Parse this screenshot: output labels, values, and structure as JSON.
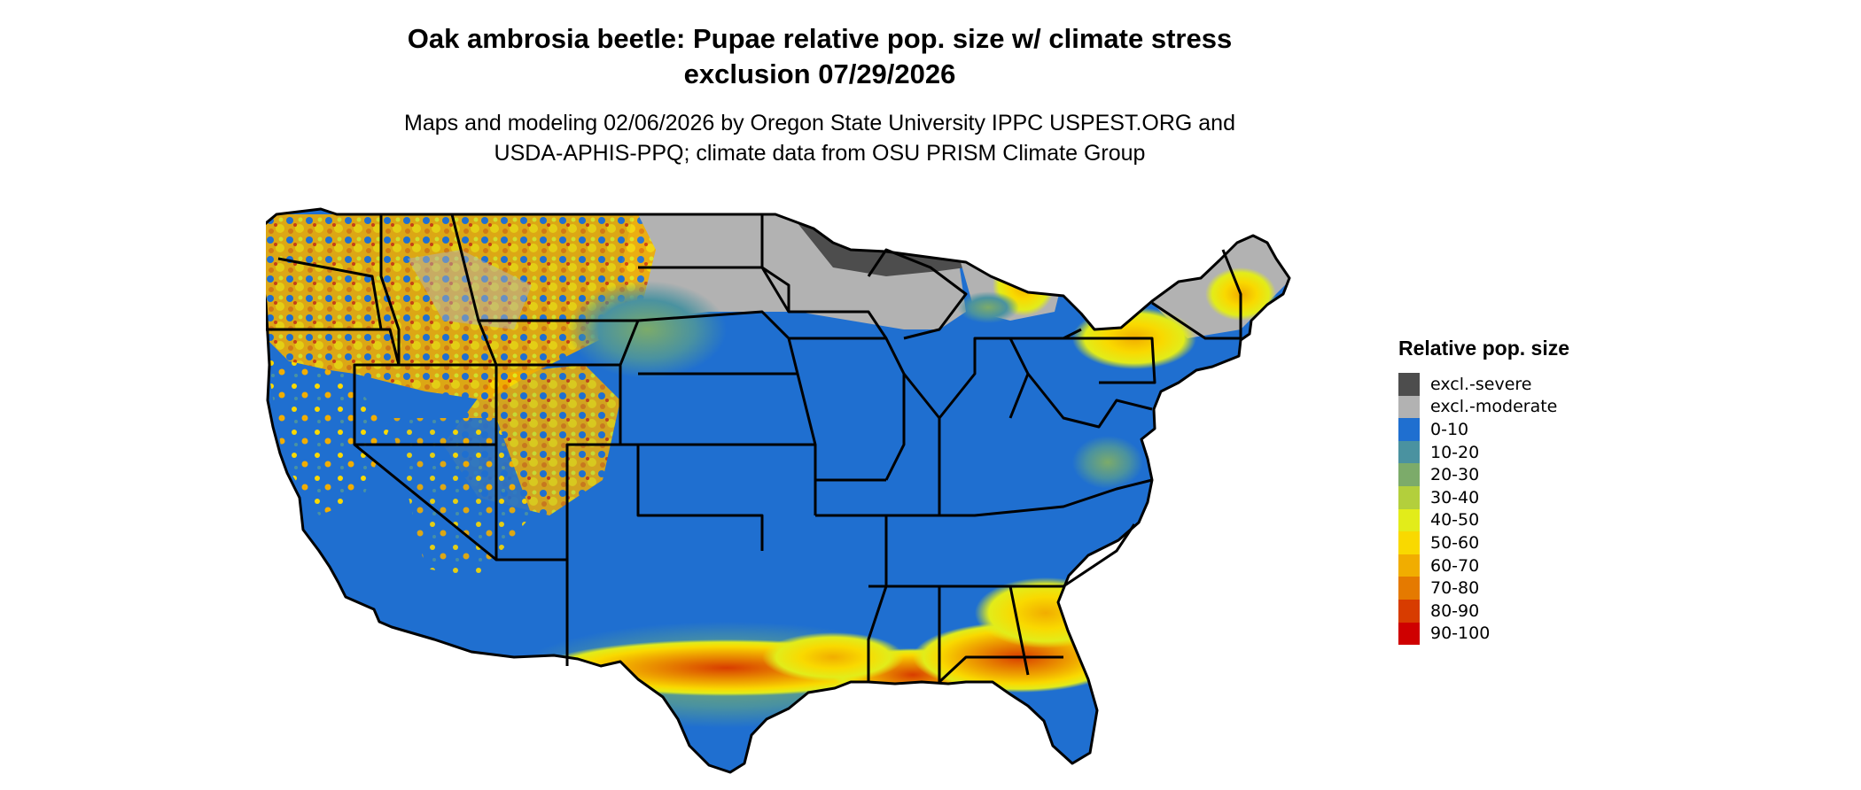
{
  "title": {
    "line1": "Oak ambrosia beetle: Pupae relative pop. size w/ climate stress",
    "line2": "exclusion 07/29/2026"
  },
  "subtitle": {
    "line1": "Maps and modeling 02/06/2026 by Oregon State University IPPC USPEST.ORG and",
    "line2": "USDA-APHIS-PPQ; climate data from OSU PRISM Climate Group"
  },
  "legend": {
    "title": "Relative pop. size",
    "items": [
      {
        "label": "excl.-severe",
        "color": "#4d4d4d"
      },
      {
        "label": "excl.-moderate",
        "color": "#b2b2b2"
      },
      {
        "label": "0-10",
        "color": "#1f6fd0"
      },
      {
        "label": "10-20",
        "color": "#4a92a0"
      },
      {
        "label": "20-30",
        "color": "#7cab6a"
      },
      {
        "label": "30-40",
        "color": "#b3cf3c"
      },
      {
        "label": "40-50",
        "color": "#e2ec1a"
      },
      {
        "label": "50-60",
        "color": "#f9d900"
      },
      {
        "label": "60-70",
        "color": "#f1ad00"
      },
      {
        "label": "70-80",
        "color": "#e57a00"
      },
      {
        "label": "80-90",
        "color": "#d83c00"
      },
      {
        "label": "90-100",
        "color": "#cf0000"
      }
    ]
  }
}
